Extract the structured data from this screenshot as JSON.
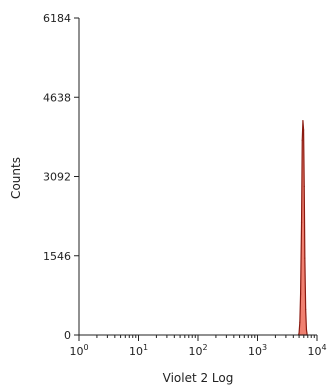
{
  "chart_data": {
    "type": "histogram",
    "xlabel": "Violet 2 Log",
    "ylabel": "Counts",
    "x_scale": "log",
    "xlim": [
      1,
      10000
    ],
    "ylim": [
      0,
      6184
    ],
    "x_ticks": [
      {
        "value": 1,
        "base": "10",
        "exp": "0"
      },
      {
        "value": 10,
        "base": "10",
        "exp": "1"
      },
      {
        "value": 100,
        "base": "10",
        "exp": "2"
      },
      {
        "value": 1000,
        "base": "10",
        "exp": "3"
      },
      {
        "value": 10000,
        "base": "10",
        "exp": "4"
      }
    ],
    "y_ticks": [
      {
        "value": 0,
        "label": "0"
      },
      {
        "value": 1546,
        "label": "1546"
      },
      {
        "value": 3092,
        "label": "3092"
      },
      {
        "value": 4638,
        "label": "4638"
      },
      {
        "value": 6184,
        "label": "6184"
      }
    ],
    "fill_color": "#f08070",
    "stroke_color": "#8b1a10",
    "bins": [
      {
        "x": 4900,
        "y": 0
      },
      {
        "x": 5000,
        "y": 40
      },
      {
        "x": 5150,
        "y": 250
      },
      {
        "x": 5300,
        "y": 800
      },
      {
        "x": 5500,
        "y": 2200
      },
      {
        "x": 5650,
        "y": 3800
      },
      {
        "x": 5800,
        "y": 4180
      },
      {
        "x": 5950,
        "y": 4000
      },
      {
        "x": 6100,
        "y": 2900
      },
      {
        "x": 6250,
        "y": 1500
      },
      {
        "x": 6450,
        "y": 500
      },
      {
        "x": 6650,
        "y": 100
      },
      {
        "x": 6850,
        "y": 0
      }
    ]
  }
}
